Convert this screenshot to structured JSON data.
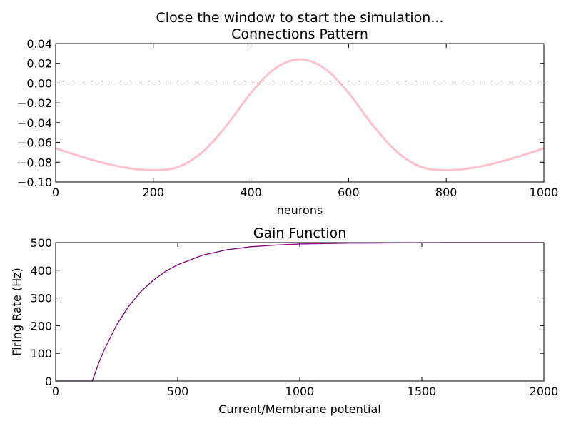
{
  "figure": {
    "suptitle": "Close the window to start the simulation..."
  },
  "chart_data": [
    {
      "type": "line",
      "title": "Connections Pattern",
      "xlabel": "neurons",
      "ylabel": "",
      "xlim": [
        0,
        1000
      ],
      "ylim": [
        -0.1,
        0.04
      ],
      "xticks": [
        0,
        200,
        400,
        600,
        800,
        1000
      ],
      "xtick_labels": [
        "0",
        "200",
        "400",
        "600",
        "800",
        "1000"
      ],
      "yticks": [
        -0.1,
        -0.08,
        -0.06,
        -0.04,
        -0.02,
        0.0,
        0.02,
        0.04
      ],
      "ytick_labels": [
        "−0.10",
        "−0.08",
        "−0.06",
        "−0.04",
        "−0.02",
        "0.00",
        "0.02",
        "0.04"
      ],
      "grid": false,
      "reference_line": {
        "y": 0.0,
        "style": "dashed",
        "color": "#808080"
      },
      "series": [
        {
          "color": "#ffc0cb",
          "x": [
            0,
            50,
            100,
            150,
            200,
            250,
            300,
            350,
            400,
            450,
            500,
            550,
            600,
            650,
            700,
            750,
            800,
            850,
            900,
            950,
            1000
          ],
          "y": [
            -0.066,
            -0.074,
            -0.081,
            -0.086,
            -0.088,
            -0.085,
            -0.07,
            -0.043,
            -0.01,
            0.015,
            0.024,
            0.015,
            -0.01,
            -0.043,
            -0.07,
            -0.085,
            -0.088,
            -0.086,
            -0.081,
            -0.074,
            -0.066
          ]
        }
      ]
    },
    {
      "type": "line",
      "title": "Gain Function",
      "xlabel": "Current/Membrane potential",
      "ylabel": "Firing Rate (Hz)",
      "xlim": [
        0,
        2000
      ],
      "ylim": [
        0,
        500
      ],
      "xticks": [
        0,
        500,
        1000,
        1500,
        2000
      ],
      "xtick_labels": [
        "0",
        "500",
        "1000",
        "1500",
        "2000"
      ],
      "yticks": [
        0,
        100,
        200,
        300,
        400,
        500
      ],
      "ytick_labels": [
        "0",
        "100",
        "200",
        "300",
        "400",
        "500"
      ],
      "grid": false,
      "series": [
        {
          "color": "#800080",
          "x": [
            0,
            150,
            175,
            200,
            250,
            300,
            350,
            400,
            450,
            500,
            600,
            700,
            800,
            900,
            1000,
            1200,
            1400,
            1600,
            1800,
            2000
          ],
          "y": [
            0,
            0,
            62,
            115,
            203,
            271,
            324,
            364,
            396,
            420,
            454,
            474,
            485,
            491,
            495,
            498,
            499,
            500,
            500,
            500
          ]
        }
      ]
    }
  ]
}
